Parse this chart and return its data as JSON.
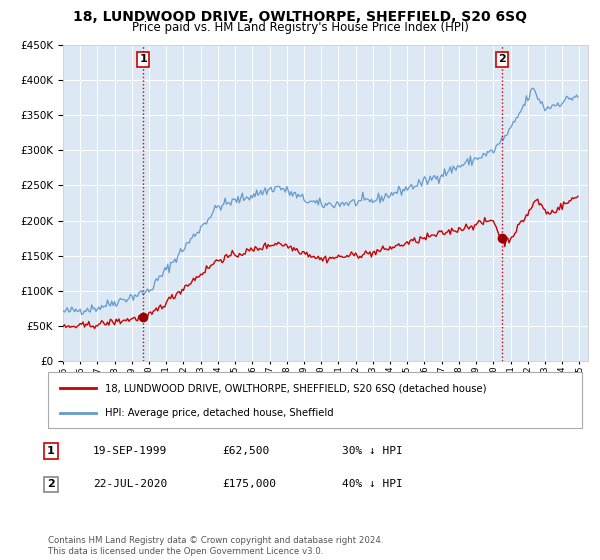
{
  "title": "18, LUNDWOOD DRIVE, OWLTHORPE, SHEFFIELD, S20 6SQ",
  "subtitle": "Price paid vs. HM Land Registry's House Price Index (HPI)",
  "legend_line1": "18, LUNDWOOD DRIVE, OWLTHORPE, SHEFFIELD, S20 6SQ (detached house)",
  "legend_line2": "HPI: Average price, detached house, Sheffield",
  "transaction1_date": "19-SEP-1999",
  "transaction1_price": 62500,
  "transaction1_pct": "30% ↓ HPI",
  "transaction2_date": "22-JUL-2020",
  "transaction2_price": 175000,
  "transaction2_pct": "40% ↓ HPI",
  "footer": "Contains HM Land Registry data © Crown copyright and database right 2024.\nThis data is licensed under the Open Government Licence v3.0.",
  "hpi_color": "#6699cc",
  "property_color": "#cc0000",
  "marker_color": "#990000",
  "vline_color": "#cc0000",
  "bg_color": "#dce9f5",
  "grid_color": "#ffffff",
  "ylim": [
    0,
    450000
  ],
  "xlim_start": 1995.0,
  "xlim_end": 2025.5
}
